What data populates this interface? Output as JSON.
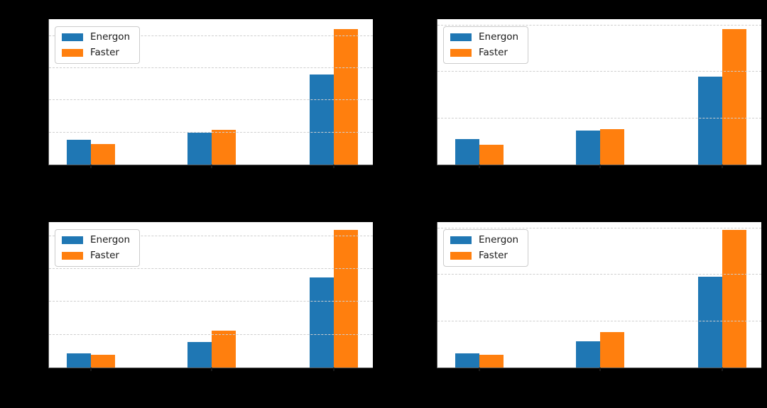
{
  "figure": {
    "background": "#000000",
    "plot_background": "#ffffff",
    "gridline_color": "#cfcfcf",
    "spine_color": "#555555",
    "note_visible_text": "Only the legend labels are visible; all titles, axis and tick labels are rendered black on a black background."
  },
  "legend": {
    "position": "upper left",
    "items": [
      {
        "label": "Energon",
        "color": "#1f77b4"
      },
      {
        "label": "Faster",
        "color": "#ff7f0e"
      }
    ]
  },
  "chart_data": [
    {
      "type": "bar",
      "position": "top-left",
      "title": "",
      "xlabel": "",
      "ylabel": "",
      "categories": [
        "",
        "",
        ""
      ],
      "series": [
        {
          "name": "Energon",
          "color": "#1f77b4",
          "values": [
            0.78,
            1.0,
            2.8
          ]
        },
        {
          "name": "Faster",
          "color": "#ff7f0e",
          "values": [
            0.64,
            1.08,
            4.21
          ]
        }
      ],
      "ylim": [
        0,
        4.52
      ],
      "gridlines": [
        1,
        2,
        3,
        4
      ],
      "grid": true,
      "grid_style": "dashed",
      "legend_position": "upper left",
      "units": "gridline-intervals (tick labels not visible)"
    },
    {
      "type": "bar",
      "position": "top-right",
      "title": "",
      "xlabel": "",
      "ylabel": "",
      "categories": [
        "",
        "",
        ""
      ],
      "series": [
        {
          "name": "Energon",
          "color": "#1f77b4",
          "values": [
            0.55,
            0.74,
            1.9
          ]
        },
        {
          "name": "Faster",
          "color": "#ff7f0e",
          "values": [
            0.43,
            0.77,
            2.92
          ]
        }
      ],
      "ylim": [
        0,
        3.14
      ],
      "gridlines": [
        1,
        2,
        3
      ],
      "grid": true,
      "grid_style": "dashed",
      "legend_position": "upper left",
      "units": "gridline-intervals (tick labels not visible)"
    },
    {
      "type": "bar",
      "position": "bottom-left",
      "title": "",
      "xlabel": "",
      "ylabel": "",
      "categories": [
        "",
        "",
        ""
      ],
      "series": [
        {
          "name": "Energon",
          "color": "#1f77b4",
          "values": [
            0.44,
            0.77,
            2.75
          ]
        },
        {
          "name": "Faster",
          "color": "#ff7f0e",
          "values": [
            0.38,
            1.13,
            4.19
          ]
        }
      ],
      "ylim": [
        0,
        4.42
      ],
      "gridlines": [
        1,
        2,
        3,
        4
      ],
      "grid": true,
      "grid_style": "dashed",
      "legend_position": "upper left",
      "units": "gridline-intervals (tick labels not visible)"
    },
    {
      "type": "bar",
      "position": "bottom-right",
      "title": "",
      "xlabel": "",
      "ylabel": "",
      "categories": [
        "",
        "",
        ""
      ],
      "series": [
        {
          "name": "Energon",
          "color": "#1f77b4",
          "values": [
            0.31,
            0.56,
            1.95
          ]
        },
        {
          "name": "Faster",
          "color": "#ff7f0e",
          "values": [
            0.27,
            0.76,
            2.96
          ]
        }
      ],
      "ylim": [
        0,
        3.13
      ],
      "gridlines": [
        1,
        2,
        3
      ],
      "grid": true,
      "grid_style": "dashed",
      "legend_position": "upper left",
      "units": "gridline-intervals (tick labels not visible)"
    }
  ]
}
